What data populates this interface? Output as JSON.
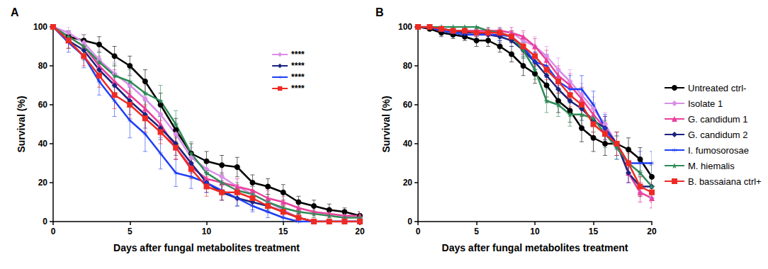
{
  "chart_data": [
    {
      "type": "line",
      "title": "A",
      "x_label": "Days after fungal metabolites treatment",
      "y_label": "Survival (%)",
      "x": [
        0,
        1,
        2,
        3,
        4,
        5,
        6,
        7,
        8,
        9,
        10,
        11,
        12,
        13,
        14,
        15,
        16,
        17,
        18,
        19,
        20
      ],
      "xlim": [
        0,
        20
      ],
      "xticks": [
        0,
        5,
        10,
        15,
        20
      ],
      "ylim": [
        0,
        100
      ],
      "yticks": [
        0,
        20,
        40,
        60,
        80,
        100
      ],
      "grid": false,
      "series": [
        {
          "name": "Untreated ctrl-",
          "color": "#000000",
          "marker": "circle",
          "values": [
            100,
            95,
            93,
            91,
            85,
            80,
            72,
            60,
            47,
            35,
            31,
            29,
            28,
            20,
            18,
            15,
            10,
            8,
            6,
            5,
            3
          ],
          "errors": [
            0,
            3,
            3,
            4,
            5,
            5,
            6,
            6,
            6,
            5,
            5,
            5,
            5,
            4,
            4,
            4,
            3,
            3,
            3,
            2,
            2
          ]
        },
        {
          "name": "Isolate 1",
          "color": "#d98ee8",
          "marker": "diamond",
          "values": [
            100,
            97,
            92,
            83,
            76,
            70,
            63,
            55,
            45,
            33,
            27,
            23,
            18,
            14,
            10,
            6,
            2,
            0,
            0,
            0,
            0
          ],
          "errors": [
            0,
            3,
            4,
            5,
            6,
            6,
            7,
            7,
            6,
            5,
            5,
            5,
            4,
            4,
            3,
            3,
            2,
            0,
            0,
            0,
            0
          ]
        },
        {
          "name": "G. candidum 1",
          "color": "#e8409a",
          "marker": "triangle",
          "values": [
            100,
            95,
            90,
            80,
            72,
            65,
            58,
            50,
            38,
            28,
            22,
            20,
            18,
            16,
            12,
            10,
            7,
            5,
            4,
            3,
            3
          ],
          "errors": [
            0,
            3,
            4,
            5,
            6,
            6,
            6,
            6,
            6,
            5,
            5,
            5,
            4,
            4,
            4,
            3,
            3,
            3,
            2,
            2,
            2
          ]
        },
        {
          "name": "G. candidum 2",
          "color": "#1a237e",
          "marker": "diamond",
          "values": [
            100,
            93,
            88,
            78,
            70,
            62,
            55,
            48,
            40,
            30,
            20,
            15,
            12,
            10,
            8,
            5,
            2,
            0,
            0,
            0,
            0
          ],
          "errors": [
            0,
            4,
            5,
            6,
            6,
            7,
            7,
            6,
            6,
            5,
            5,
            4,
            4,
            4,
            3,
            3,
            2,
            0,
            0,
            0,
            0
          ]
        },
        {
          "name": "I. fumosorosae",
          "color": "#1e3ff5",
          "marker": "asterisk",
          "values": [
            100,
            92,
            85,
            72,
            62,
            52,
            45,
            35,
            25,
            23,
            20,
            16,
            12,
            8,
            5,
            2,
            0,
            0,
            0,
            0,
            0
          ],
          "errors": [
            0,
            5,
            6,
            7,
            8,
            9,
            9,
            8,
            7,
            6,
            5,
            5,
            4,
            3,
            3,
            2,
            0,
            0,
            0,
            0,
            0
          ]
        },
        {
          "name": "M. hiemalis",
          "color": "#2e8b57",
          "marker": "star",
          "values": [
            100,
            95,
            90,
            82,
            75,
            72,
            66,
            62,
            50,
            35,
            25,
            20,
            16,
            14,
            10,
            7,
            5,
            4,
            3,
            2,
            2
          ],
          "errors": [
            0,
            3,
            4,
            5,
            6,
            6,
            7,
            8,
            7,
            6,
            5,
            5,
            4,
            4,
            4,
            3,
            3,
            2,
            2,
            2,
            2
          ]
        },
        {
          "name": "B. bassaiana ctrl+",
          "color": "#ee2a24",
          "marker": "square",
          "values": [
            100,
            93,
            85,
            75,
            65,
            60,
            53,
            46,
            38,
            27,
            18,
            15,
            15,
            12,
            8,
            5,
            2,
            0,
            0,
            0,
            0
          ],
          "errors": [
            0,
            4,
            5,
            6,
            7,
            7,
            7,
            6,
            6,
            5,
            5,
            4,
            4,
            4,
            3,
            3,
            2,
            0,
            0,
            0,
            0
          ]
        }
      ],
      "annotations": [
        {
          "text": "****",
          "series": "Isolate 1"
        },
        {
          "text": "****",
          "series": "G. candidum 2"
        },
        {
          "text": "****",
          "series": "I. fumosorosae"
        },
        {
          "text": "****",
          "series": "B. bassaiana ctrl+"
        }
      ]
    },
    {
      "type": "line",
      "title": "B",
      "x_label": "Days after fungal metabolites treatment",
      "y_label": "Survival (%)",
      "x": [
        0,
        1,
        2,
        3,
        4,
        5,
        6,
        7,
        8,
        9,
        10,
        11,
        12,
        13,
        14,
        15,
        16,
        17,
        18,
        19,
        20
      ],
      "xlim": [
        0,
        20
      ],
      "xticks": [
        0,
        5,
        10,
        15,
        20
      ],
      "ylim": [
        0,
        100
      ],
      "yticks": [
        0,
        20,
        40,
        60,
        80,
        100
      ],
      "grid": false,
      "legend": "right",
      "series": [
        {
          "name": "Untreated ctrl-",
          "color": "#000000",
          "marker": "circle",
          "values": [
            100,
            99,
            97,
            96,
            95,
            93,
            93,
            90,
            86,
            80,
            76,
            70,
            62,
            57,
            48,
            43,
            40,
            40,
            37,
            32,
            23
          ],
          "errors": [
            0,
            1,
            2,
            2,
            2,
            3,
            3,
            3,
            4,
            5,
            5,
            6,
            6,
            6,
            7,
            7,
            6,
            6,
            6,
            6,
            6
          ]
        },
        {
          "name": "Isolate 1",
          "color": "#d98ee8",
          "marker": "diamond",
          "values": [
            100,
            100,
            99,
            98,
            98,
            98,
            98,
            98,
            97,
            93,
            90,
            85,
            78,
            72,
            65,
            58,
            50,
            40,
            25,
            15,
            12
          ],
          "errors": [
            0,
            1,
            1,
            2,
            2,
            2,
            2,
            2,
            3,
            4,
            5,
            5,
            6,
            6,
            6,
            6,
            6,
            6,
            5,
            5,
            5
          ]
        },
        {
          "name": "G. candidum 1",
          "color": "#e8409a",
          "marker": "triangle",
          "values": [
            100,
            100,
            99,
            98,
            98,
            98,
            98,
            98,
            97,
            95,
            90,
            83,
            75,
            70,
            63,
            55,
            48,
            40,
            25,
            15,
            12
          ],
          "errors": [
            0,
            1,
            1,
            2,
            2,
            2,
            2,
            2,
            3,
            3,
            4,
            5,
            5,
            6,
            6,
            6,
            6,
            6,
            5,
            5,
            5
          ]
        },
        {
          "name": "G. candidum 2",
          "color": "#1a237e",
          "marker": "diamond",
          "values": [
            100,
            100,
            99,
            98,
            97,
            97,
            96,
            95,
            93,
            88,
            82,
            75,
            68,
            62,
            58,
            52,
            48,
            40,
            25,
            18,
            18
          ],
          "errors": [
            0,
            1,
            1,
            2,
            2,
            2,
            2,
            3,
            3,
            4,
            5,
            5,
            6,
            6,
            6,
            6,
            6,
            6,
            5,
            5,
            5
          ]
        },
        {
          "name": "I. fumosorosae",
          "color": "#1e3ff5",
          "marker": "asterisk",
          "values": [
            100,
            100,
            98,
            97,
            96,
            96,
            96,
            96,
            95,
            90,
            82,
            80,
            72,
            68,
            68,
            60,
            48,
            38,
            30,
            30,
            30
          ],
          "errors": [
            0,
            1,
            2,
            2,
            2,
            2,
            2,
            3,
            3,
            4,
            5,
            6,
            6,
            7,
            7,
            7,
            7,
            6,
            6,
            6,
            6
          ]
        },
        {
          "name": "M. hiemalis",
          "color": "#2e8b57",
          "marker": "star",
          "values": [
            100,
            100,
            100,
            100,
            100,
            100,
            98,
            97,
            95,
            88,
            78,
            62,
            60,
            55,
            55,
            53,
            45,
            38,
            30,
            25,
            18
          ],
          "errors": [
            0,
            0,
            0,
            0,
            0,
            0,
            2,
            3,
            3,
            4,
            5,
            6,
            6,
            6,
            7,
            7,
            7,
            6,
            6,
            6,
            6
          ]
        },
        {
          "name": "B. bassaiana ctrl+",
          "color": "#ee2a24",
          "marker": "square",
          "values": [
            100,
            100,
            99,
            98,
            98,
            97,
            97,
            97,
            95,
            90,
            85,
            78,
            72,
            65,
            60,
            50,
            45,
            40,
            30,
            18,
            15
          ],
          "errors": [
            0,
            1,
            1,
            2,
            2,
            2,
            2,
            2,
            3,
            4,
            5,
            5,
            6,
            6,
            6,
            6,
            6,
            6,
            5,
            5,
            5
          ]
        }
      ]
    }
  ]
}
